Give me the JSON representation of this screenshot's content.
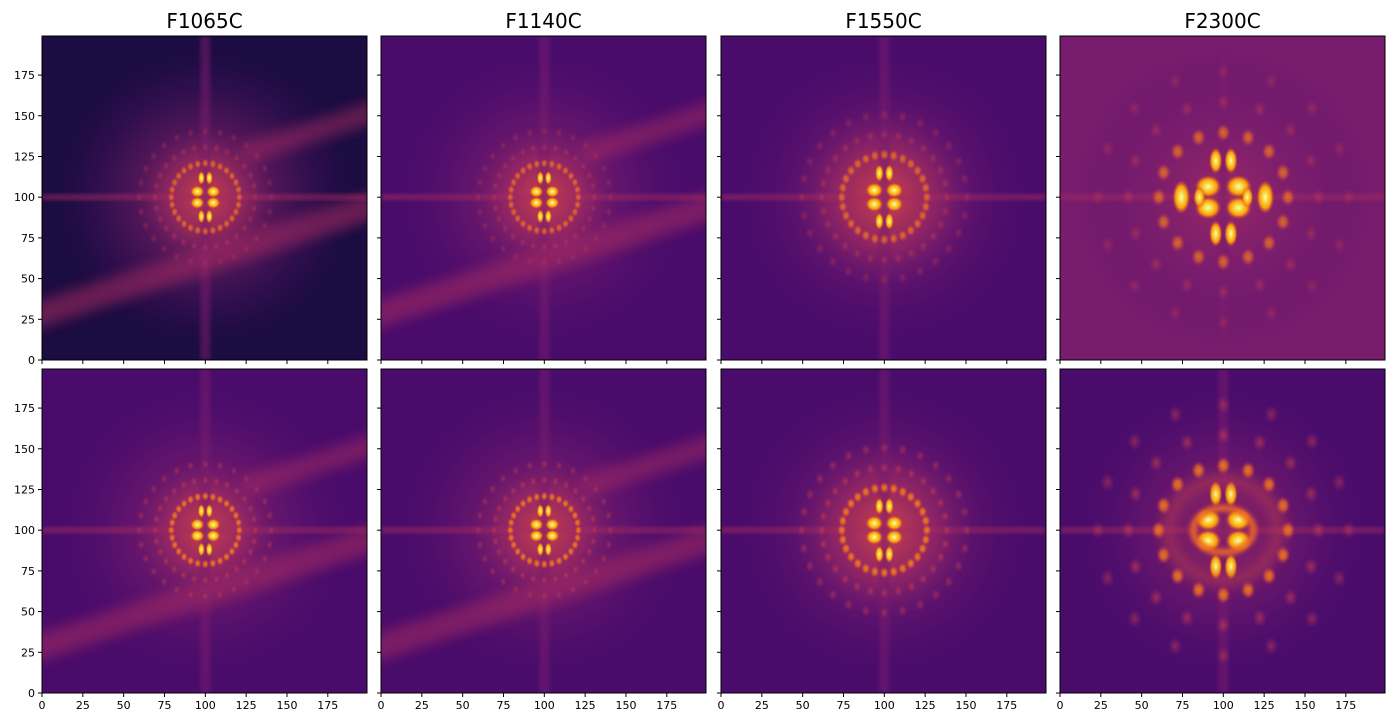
{
  "figure": {
    "columns": [
      "F1065C",
      "F1140C",
      "F1550C",
      "F2300C"
    ],
    "rows": 2,
    "x_ticks": [
      "0",
      "25",
      "50",
      "75",
      "100",
      "125",
      "150",
      "175"
    ],
    "y_ticks": [
      "0",
      "25",
      "50",
      "75",
      "100",
      "125",
      "150",
      "175"
    ],
    "axis_range": [
      0,
      199
    ],
    "colormap": [
      "#000004",
      "#1b0c41",
      "#4a0c6b",
      "#781c6d",
      "#a52c60",
      "#cf4446",
      "#ed6925",
      "#fb9b06",
      "#f7d13d",
      "#fcffa4"
    ],
    "x_tick_labels_shown_on_row": "bottom",
    "y_tick_labels_shown_on_column": "left"
  }
}
